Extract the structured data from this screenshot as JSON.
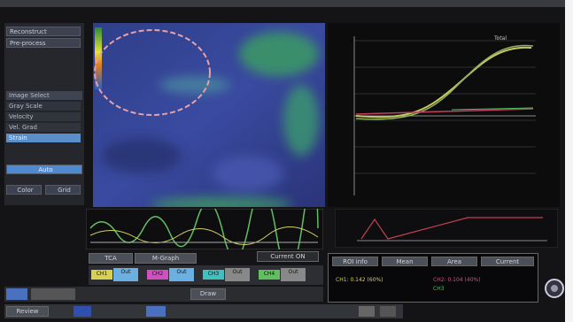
{
  "left_panel": {
    "buttons": [
      "Reconstruct",
      "Pre-process"
    ],
    "image_select": "Image Select",
    "modes": [
      "Gray Scale",
      "Velocity",
      "Vel. Grad",
      "Strain"
    ],
    "auto": "Auto",
    "color": "Color",
    "grid": "Grid"
  },
  "graph": {
    "legend": "Total"
  },
  "tabs": [
    "TCA",
    "M-Graph"
  ],
  "current": "Current ON",
  "channels": [
    {
      "name": "CH1",
      "action": "Out"
    },
    {
      "name": "CH2",
      "action": "Out"
    },
    {
      "name": "CH3",
      "action": "Out"
    },
    {
      "name": "CH4",
      "action": "Out"
    }
  ],
  "info": {
    "tabs": [
      "ROI info",
      "Mean",
      "Area",
      "Current"
    ],
    "lines": [
      "CH1: 0.142 (60%)",
      "CH2: 0.104 (40%)",
      "CH3"
    ]
  },
  "toolbar": {
    "draw": "Draw",
    "review": "Review"
  }
}
